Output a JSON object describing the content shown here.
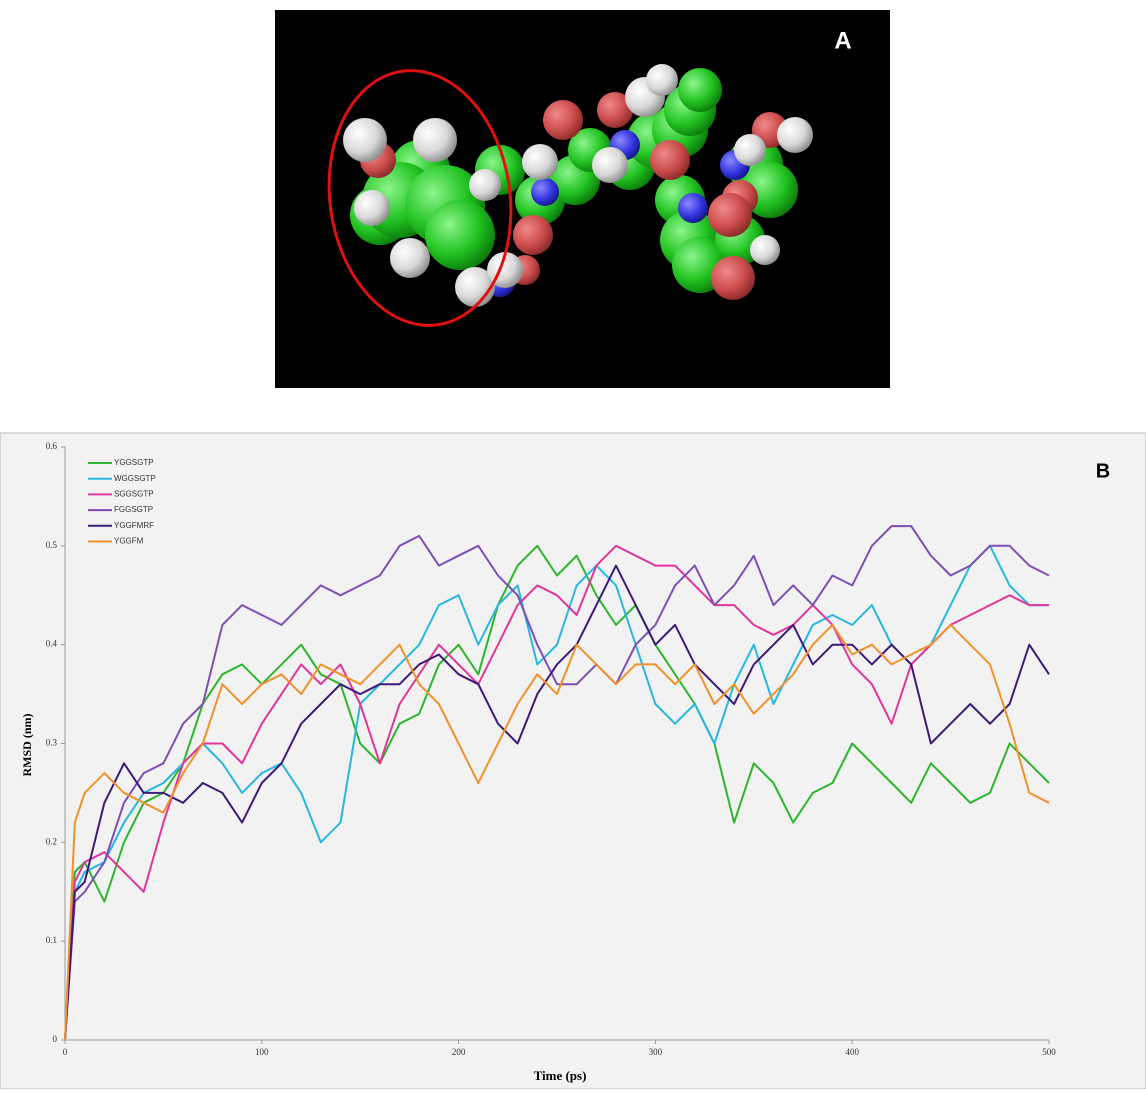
{
  "figure_a": {
    "label": "A"
  },
  "chart_data": {
    "type": "line",
    "panel_label": "B",
    "xlabel": "Time (ps)",
    "ylabel": "RMSD (nm)",
    "xlim": [
      0,
      500
    ],
    "xticks": [
      0,
      100,
      200,
      300,
      400,
      500
    ],
    "ylim": [
      0,
      0.6
    ],
    "yticks": [
      0,
      0.1,
      0.2,
      0.3,
      0.4,
      0.5,
      0.6
    ],
    "legend": "upper-left",
    "x": [
      0,
      5,
      10,
      20,
      30,
      40,
      50,
      60,
      70,
      80,
      90,
      100,
      110,
      120,
      130,
      140,
      150,
      160,
      170,
      180,
      190,
      200,
      210,
      220,
      230,
      240,
      250,
      260,
      270,
      280,
      290,
      300,
      310,
      320,
      330,
      340,
      350,
      360,
      370,
      380,
      390,
      400,
      410,
      420,
      430,
      440,
      450,
      460,
      470,
      480,
      490,
      500
    ],
    "series": [
      {
        "name": "YGGSGTP",
        "color": "#2db52d",
        "values": [
          0,
          0.17,
          0.18,
          0.14,
          0.2,
          0.24,
          0.25,
          0.28,
          0.34,
          0.37,
          0.38,
          0.36,
          0.38,
          0.4,
          0.37,
          0.36,
          0.3,
          0.28,
          0.32,
          0.33,
          0.38,
          0.4,
          0.37,
          0.44,
          0.48,
          0.5,
          0.47,
          0.49,
          0.45,
          0.42,
          0.44,
          0.4,
          0.37,
          0.34,
          0.3,
          0.22,
          0.28,
          0.26,
          0.22,
          0.25,
          0.26,
          0.3,
          0.28,
          0.26,
          0.24,
          0.28,
          0.26,
          0.24,
          0.25,
          0.3,
          0.28,
          0.26
        ]
      },
      {
        "name": "WGGSGTP",
        "color": "#29b6e0",
        "values": [
          0,
          0.15,
          0.17,
          0.18,
          0.22,
          0.25,
          0.26,
          0.28,
          0.3,
          0.28,
          0.25,
          0.27,
          0.28,
          0.25,
          0.2,
          0.22,
          0.34,
          0.36,
          0.38,
          0.4,
          0.44,
          0.45,
          0.4,
          0.44,
          0.46,
          0.38,
          0.4,
          0.46,
          0.48,
          0.46,
          0.4,
          0.34,
          0.32,
          0.34,
          0.3,
          0.36,
          0.4,
          0.34,
          0.38,
          0.42,
          0.43,
          0.42,
          0.44,
          0.4,
          0.38,
          0.4,
          0.44,
          0.48,
          0.5,
          0.46,
          0.44,
          0.44
        ]
      },
      {
        "name": "SGGSGTP",
        "color": "#e0359a",
        "values": [
          0,
          0.16,
          0.18,
          0.19,
          0.17,
          0.15,
          0.22,
          0.28,
          0.3,
          0.3,
          0.28,
          0.32,
          0.35,
          0.38,
          0.36,
          0.38,
          0.34,
          0.28,
          0.34,
          0.37,
          0.4,
          0.38,
          0.36,
          0.4,
          0.44,
          0.46,
          0.45,
          0.43,
          0.48,
          0.5,
          0.49,
          0.48,
          0.48,
          0.46,
          0.44,
          0.44,
          0.42,
          0.41,
          0.42,
          0.44,
          0.42,
          0.38,
          0.36,
          0.32,
          0.38,
          0.4,
          0.42,
          0.43,
          0.44,
          0.45,
          0.44,
          0.44
        ]
      },
      {
        "name": "FGGSGTP",
        "color": "#7d4fb5",
        "values": [
          0,
          0.14,
          0.15,
          0.18,
          0.24,
          0.27,
          0.28,
          0.32,
          0.34,
          0.42,
          0.44,
          0.43,
          0.42,
          0.44,
          0.46,
          0.45,
          0.46,
          0.47,
          0.5,
          0.51,
          0.48,
          0.49,
          0.5,
          0.47,
          0.45,
          0.4,
          0.36,
          0.36,
          0.38,
          0.36,
          0.4,
          0.42,
          0.46,
          0.48,
          0.44,
          0.46,
          0.49,
          0.44,
          0.46,
          0.44,
          0.47,
          0.46,
          0.5,
          0.52,
          0.52,
          0.49,
          0.47,
          0.48,
          0.5,
          0.5,
          0.48,
          0.47
        ]
      },
      {
        "name": "YGGFMRF",
        "color": "#3d1a78",
        "values": [
          0,
          0.15,
          0.16,
          0.24,
          0.28,
          0.25,
          0.25,
          0.24,
          0.26,
          0.25,
          0.22,
          0.26,
          0.28,
          0.32,
          0.34,
          0.36,
          0.35,
          0.36,
          0.36,
          0.38,
          0.39,
          0.37,
          0.36,
          0.32,
          0.3,
          0.35,
          0.38,
          0.4,
          0.44,
          0.48,
          0.44,
          0.4,
          0.42,
          0.38,
          0.36,
          0.34,
          0.38,
          0.4,
          0.42,
          0.38,
          0.4,
          0.4,
          0.38,
          0.4,
          0.38,
          0.3,
          0.32,
          0.34,
          0.32,
          0.34,
          0.4,
          0.37
        ]
      },
      {
        "name": "YGGFM",
        "color": "#f0922b",
        "values": [
          0,
          0.22,
          0.25,
          0.27,
          0.25,
          0.24,
          0.23,
          0.27,
          0.3,
          0.36,
          0.34,
          0.36,
          0.37,
          0.35,
          0.38,
          0.37,
          0.36,
          0.38,
          0.4,
          0.36,
          0.34,
          0.3,
          0.26,
          0.3,
          0.34,
          0.37,
          0.35,
          0.4,
          0.38,
          0.36,
          0.38,
          0.38,
          0.36,
          0.38,
          0.34,
          0.36,
          0.33,
          0.35,
          0.37,
          0.4,
          0.42,
          0.39,
          0.4,
          0.38,
          0.39,
          0.4,
          0.42,
          0.4,
          0.38,
          0.32,
          0.25,
          0.24
        ]
      }
    ]
  }
}
